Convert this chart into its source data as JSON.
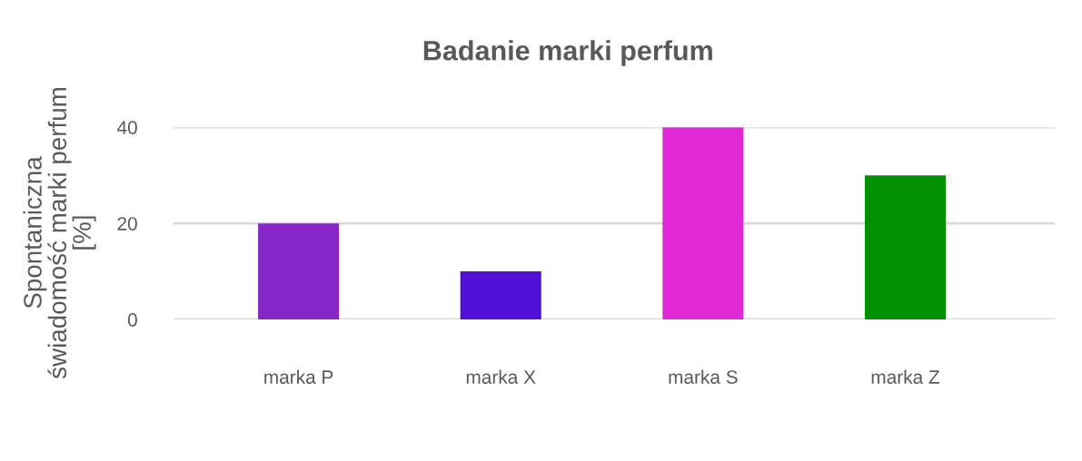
{
  "chart_data": {
    "type": "bar",
    "title": "Badanie marki perfum",
    "ylabel": "Spontaniczna\nświadomość marki perfum\n[%]",
    "categories": [
      "marka P",
      "marka X",
      "marka S",
      "marka Z"
    ],
    "values": [
      20,
      10,
      40,
      30
    ],
    "colors": [
      "#8827c8",
      "#5010d8",
      "#e228d6",
      "#009000"
    ],
    "ylim": [
      0,
      40
    ],
    "yticks": [
      0,
      20,
      40
    ],
    "grid": "y"
  }
}
